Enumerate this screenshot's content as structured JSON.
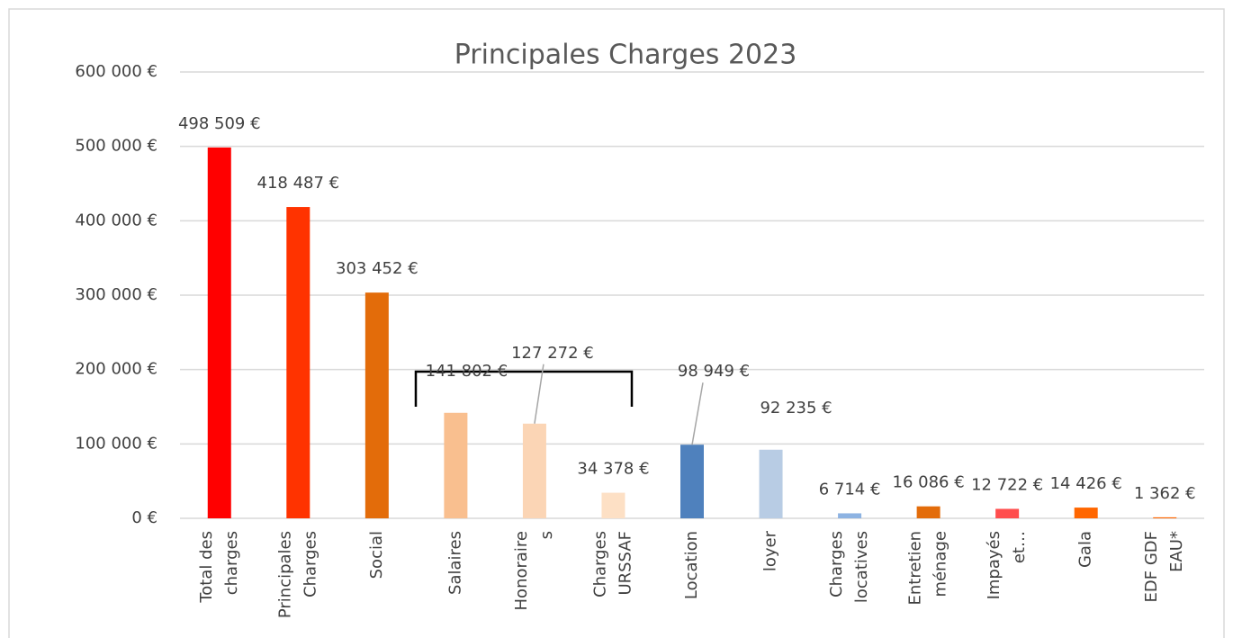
{
  "chart_data": {
    "type": "bar",
    "title": "Principales Charges 2023",
    "categories": [
      "Total des charges",
      "Principales Charges",
      "Social",
      "Salaires",
      "Honoraires",
      "Charges URSSAF",
      "Location",
      "loyer",
      "Charges locatives",
      "Entretien ménage",
      "Impayés et…",
      "Gala",
      "EDF GDF EAU*"
    ],
    "values": [
      498509,
      418487,
      303452,
      141802,
      127272,
      34378,
      98949,
      92235,
      6714,
      16086,
      12722,
      14426,
      1362
    ],
    "value_labels": [
      "498 509 €",
      "418 487 €",
      "303 452 €",
      "141 802 €",
      "127 272 €",
      "34 378 €",
      "98 949 €",
      "92 235 €",
      "6 714 €",
      "16 086 €",
      "12 722 €",
      "14 426 €",
      "1 362 €"
    ],
    "colors": [
      "#ff0000",
      "#ff3300",
      "#e36c0a",
      "#f9bf8f",
      "#fbd5b5",
      "#fde0c5",
      "#4f81bd",
      "#b8cce4",
      "#8db3e2",
      "#e36c0a",
      "#ff4d4d",
      "#ff6600",
      "#ff6600"
    ],
    "ylim": [
      0,
      600000
    ],
    "yticks": [
      {
        "value": 0,
        "label": "0 €"
      },
      {
        "value": 100000,
        "label": "100 000 €"
      },
      {
        "value": 200000,
        "label": "200 000 €"
      },
      {
        "value": 300000,
        "label": "300 000 €"
      },
      {
        "value": 400000,
        "label": "400 000 €"
      },
      {
        "value": 500000,
        "label": "500 000 €"
      },
      {
        "value": 600000,
        "label": "600 000 €"
      }
    ],
    "grid": true
  }
}
